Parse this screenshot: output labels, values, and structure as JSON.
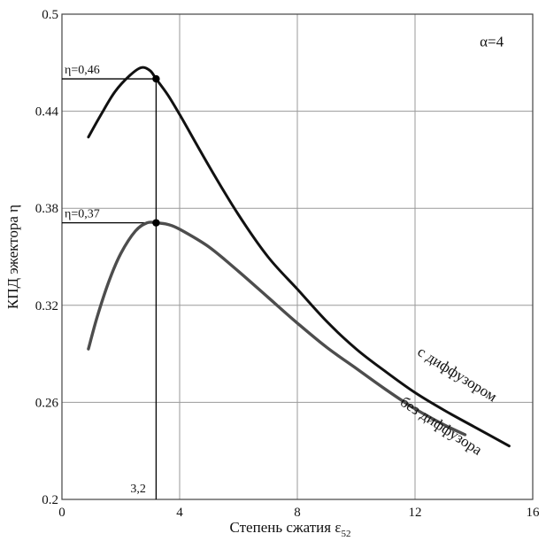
{
  "chart_data": {
    "type": "line",
    "title": "",
    "xlabel": "Степень сжатия ε",
    "xlabel_subscript": "52",
    "ylabel": "КПД эжектора η",
    "xlim": [
      0,
      16
    ],
    "ylim": [
      0.2,
      0.5
    ],
    "xticks": [
      0,
      4,
      8,
      12,
      16
    ],
    "yticks": [
      0.2,
      0.26,
      0.32,
      0.38,
      0.44,
      0.5
    ],
    "xtick_labels": [
      "0",
      "4",
      "8",
      "12",
      "16"
    ],
    "ytick_labels": [
      "0.2",
      "0.26",
      "0.32",
      "0.38",
      "0.44",
      "0.5"
    ],
    "grid": true,
    "annotation_alpha": "α=4",
    "series": [
      {
        "name": "с диффузором",
        "color": "#111111",
        "x": [
          0.9,
          1.3,
          1.8,
          2.3,
          2.7,
          3.0,
          3.2,
          3.6,
          4.0,
          5.0,
          6.0,
          7.0,
          8.0,
          9.0,
          10.0,
          11.0,
          12.0,
          13.0,
          14.0,
          15.2
        ],
        "y": [
          0.424,
          0.437,
          0.452,
          0.462,
          0.467,
          0.465,
          0.46,
          0.45,
          0.438,
          0.406,
          0.376,
          0.35,
          0.33,
          0.31,
          0.293,
          0.279,
          0.266,
          0.255,
          0.245,
          0.233
        ]
      },
      {
        "name": "без диффузора",
        "color": "#4d4d4d",
        "x": [
          0.9,
          1.2,
          1.6,
          2.0,
          2.5,
          2.9,
          3.2,
          3.6,
          4.0,
          5.0,
          6.0,
          7.0,
          8.0,
          9.0,
          10.0,
          11.0,
          12.0,
          13.0,
          13.7
        ],
        "y": [
          0.293,
          0.313,
          0.335,
          0.352,
          0.366,
          0.371,
          0.371,
          0.37,
          0.367,
          0.356,
          0.341,
          0.325,
          0.309,
          0.294,
          0.281,
          0.268,
          0.256,
          0.246,
          0.24
        ]
      }
    ],
    "markers": [
      {
        "x": 3.2,
        "y": 0.46,
        "label": "η=0,46"
      },
      {
        "x": 3.2,
        "y": 0.371,
        "label": "η=0,37"
      }
    ],
    "x_marker_label": "3,2"
  }
}
